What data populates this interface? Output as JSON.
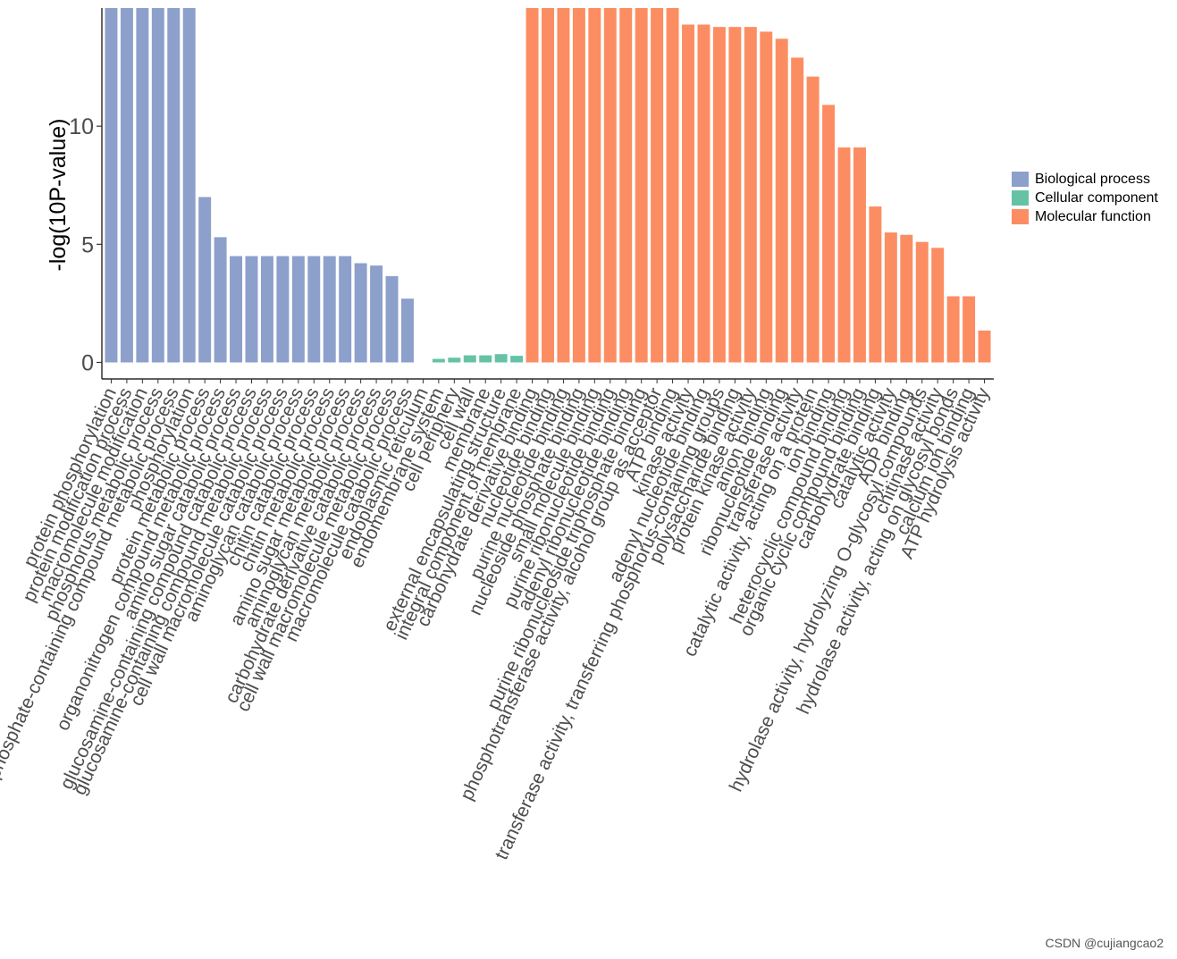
{
  "chart_data": {
    "type": "bar",
    "ylabel": "-log(10P-value)",
    "yticks": [
      0,
      5,
      10
    ],
    "ylim": [
      -0.7,
      15
    ],
    "legend_position": "right",
    "grid": false,
    "series": [
      {
        "name": "Biological process",
        "color": "#8DA0CB"
      },
      {
        "name": "Cellular component",
        "color": "#66C2A5"
      },
      {
        "name": "Molecular function",
        "color": "#FC8D62"
      }
    ],
    "bars": [
      {
        "label": "protein phosphorylation",
        "value": 15,
        "group": 0
      },
      {
        "label": "protein modification process",
        "value": 15,
        "group": 0
      },
      {
        "label": "macromolecule modification",
        "value": 15,
        "group": 0
      },
      {
        "label": "phosphorus metabolic process",
        "value": 15,
        "group": 0
      },
      {
        "label": "phosphate-containing compound metabolic process",
        "value": 15,
        "group": 0
      },
      {
        "label": "phosphorylation",
        "value": 15,
        "group": 0
      },
      {
        "label": "protein metabolic process",
        "value": 7.0,
        "group": 0
      },
      {
        "label": "organonitrogen compound metabolic process",
        "value": 5.3,
        "group": 0
      },
      {
        "label": "amino sugar catabolic process",
        "value": 4.5,
        "group": 0
      },
      {
        "label": "glucosamine-containing compound catabolic process",
        "value": 4.5,
        "group": 0
      },
      {
        "label": "glucosamine-containing compound metabolic process",
        "value": 4.5,
        "group": 0
      },
      {
        "label": "cell wall macromolecule catabolic process",
        "value": 4.5,
        "group": 0
      },
      {
        "label": "aminoglycan catabolic process",
        "value": 4.5,
        "group": 0
      },
      {
        "label": "chitin catabolic process",
        "value": 4.5,
        "group": 0
      },
      {
        "label": "chitin metabolic process",
        "value": 4.5,
        "group": 0
      },
      {
        "label": "amino sugar metabolic process",
        "value": 4.5,
        "group": 0
      },
      {
        "label": "aminoglycan metabolic process",
        "value": 4.2,
        "group": 0
      },
      {
        "label": "carbohydrate derivative catabolic process",
        "value": 4.1,
        "group": 0
      },
      {
        "label": "cell wall macromolecule metabolic process",
        "value": 3.65,
        "group": 0
      },
      {
        "label": "macromolecule catabolic process",
        "value": 2.7,
        "group": 0
      },
      {
        "label": "endoplasmic reticulum",
        "value": 0,
        "group": 1
      },
      {
        "label": "endomembrane system",
        "value": 0.15,
        "group": 1
      },
      {
        "label": "cell periphery",
        "value": 0.2,
        "group": 1
      },
      {
        "label": "cell wall",
        "value": 0.3,
        "group": 1
      },
      {
        "label": "membrane",
        "value": 0.3,
        "group": 1
      },
      {
        "label": "external encapsulating structure",
        "value": 0.35,
        "group": 1
      },
      {
        "label": "integral component of membrane",
        "value": 0.28,
        "group": 1
      },
      {
        "label": "carbohydrate derivative binding",
        "value": 15,
        "group": 2
      },
      {
        "label": "nucleotide binding",
        "value": 15,
        "group": 2
      },
      {
        "label": "purine nucleotide binding",
        "value": 15,
        "group": 2
      },
      {
        "label": "nucleoside phosphate binding",
        "value": 15,
        "group": 2
      },
      {
        "label": "small molecule binding",
        "value": 15,
        "group": 2
      },
      {
        "label": "purine ribonucleotide binding",
        "value": 15,
        "group": 2
      },
      {
        "label": "adenyl ribonucleotide binding",
        "value": 15,
        "group": 2
      },
      {
        "label": "purine ribonucleoside triphosphate binding",
        "value": 15,
        "group": 2
      },
      {
        "label": "phosphotransferase activity, alcohol group as acceptor",
        "value": 15,
        "group": 2
      },
      {
        "label": "ATP binding",
        "value": 15,
        "group": 2
      },
      {
        "label": "kinase activity",
        "value": 14.3,
        "group": 2
      },
      {
        "label": "adenyl nucleotide binding",
        "value": 14.3,
        "group": 2
      },
      {
        "label": "transferase activity, transferring phosphorus-containing groups",
        "value": 14.2,
        "group": 2
      },
      {
        "label": "polysaccharide binding",
        "value": 14.2,
        "group": 2
      },
      {
        "label": "protein kinase activity",
        "value": 14.2,
        "group": 2
      },
      {
        "label": "anion binding",
        "value": 14.0,
        "group": 2
      },
      {
        "label": "ribonucleotide binding",
        "value": 13.7,
        "group": 2
      },
      {
        "label": "transferase activity",
        "value": 12.9,
        "group": 2
      },
      {
        "label": "catalytic activity, acting on a protein",
        "value": 12.1,
        "group": 2
      },
      {
        "label": "ion binding",
        "value": 10.9,
        "group": 2
      },
      {
        "label": "heterocyclic compound binding",
        "value": 9.1,
        "group": 2
      },
      {
        "label": "organic cyclic compound binding",
        "value": 9.1,
        "group": 2
      },
      {
        "label": "carbohydrate binding",
        "value": 6.6,
        "group": 2
      },
      {
        "label": "catalytic activity",
        "value": 5.5,
        "group": 2
      },
      {
        "label": "ADP binding",
        "value": 5.4,
        "group": 2
      },
      {
        "label": "hydrolase activity, hydrolyzing O-glycosyl compounds",
        "value": 5.1,
        "group": 2
      },
      {
        "label": "chitinase activity",
        "value": 4.85,
        "group": 2
      },
      {
        "label": "hydrolase activity, acting on glycosyl bonds",
        "value": 2.8,
        "group": 2
      },
      {
        "label": "calcium ion binding",
        "value": 2.8,
        "group": 2
      },
      {
        "label": "ATP hydrolysis activity",
        "value": 1.35,
        "group": 2
      }
    ]
  },
  "watermark": "CSDN @cujiangcao2"
}
